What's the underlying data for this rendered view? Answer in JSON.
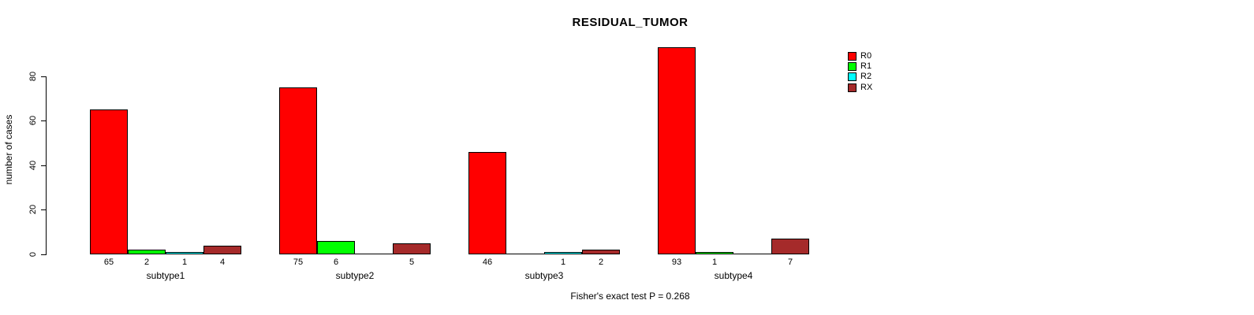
{
  "chart_data": {
    "type": "bar",
    "grouped": true,
    "title": "RESIDUAL_TUMOR",
    "xlabel": "",
    "ylabel": "number of cases",
    "annotation": "Fisher's exact test P = 0.268",
    "categories": [
      "subtype1",
      "subtype2",
      "subtype3",
      "subtype4"
    ],
    "series": [
      {
        "name": "R0",
        "color": "#FF0000",
        "values": [
          65,
          75,
          46,
          93
        ]
      },
      {
        "name": "R1",
        "color": "#00FF00",
        "values": [
          2,
          6,
          0,
          1
        ]
      },
      {
        "name": "R2",
        "color": "#00FFFF",
        "values": [
          1,
          0,
          1,
          0
        ]
      },
      {
        "name": "RX",
        "color": "#A52A2A",
        "values": [
          4,
          5,
          2,
          7
        ]
      }
    ],
    "yticks": [
      0,
      20,
      40,
      60,
      80
    ],
    "ylim": [
      0,
      93
    ],
    "bar_value_labels_shown_for_nonzero_only": true,
    "grid": false,
    "legend_position": "top-right",
    "axis_color": "#000000",
    "bar_border_color": "#000000",
    "background_color": "#FFFFFF"
  }
}
